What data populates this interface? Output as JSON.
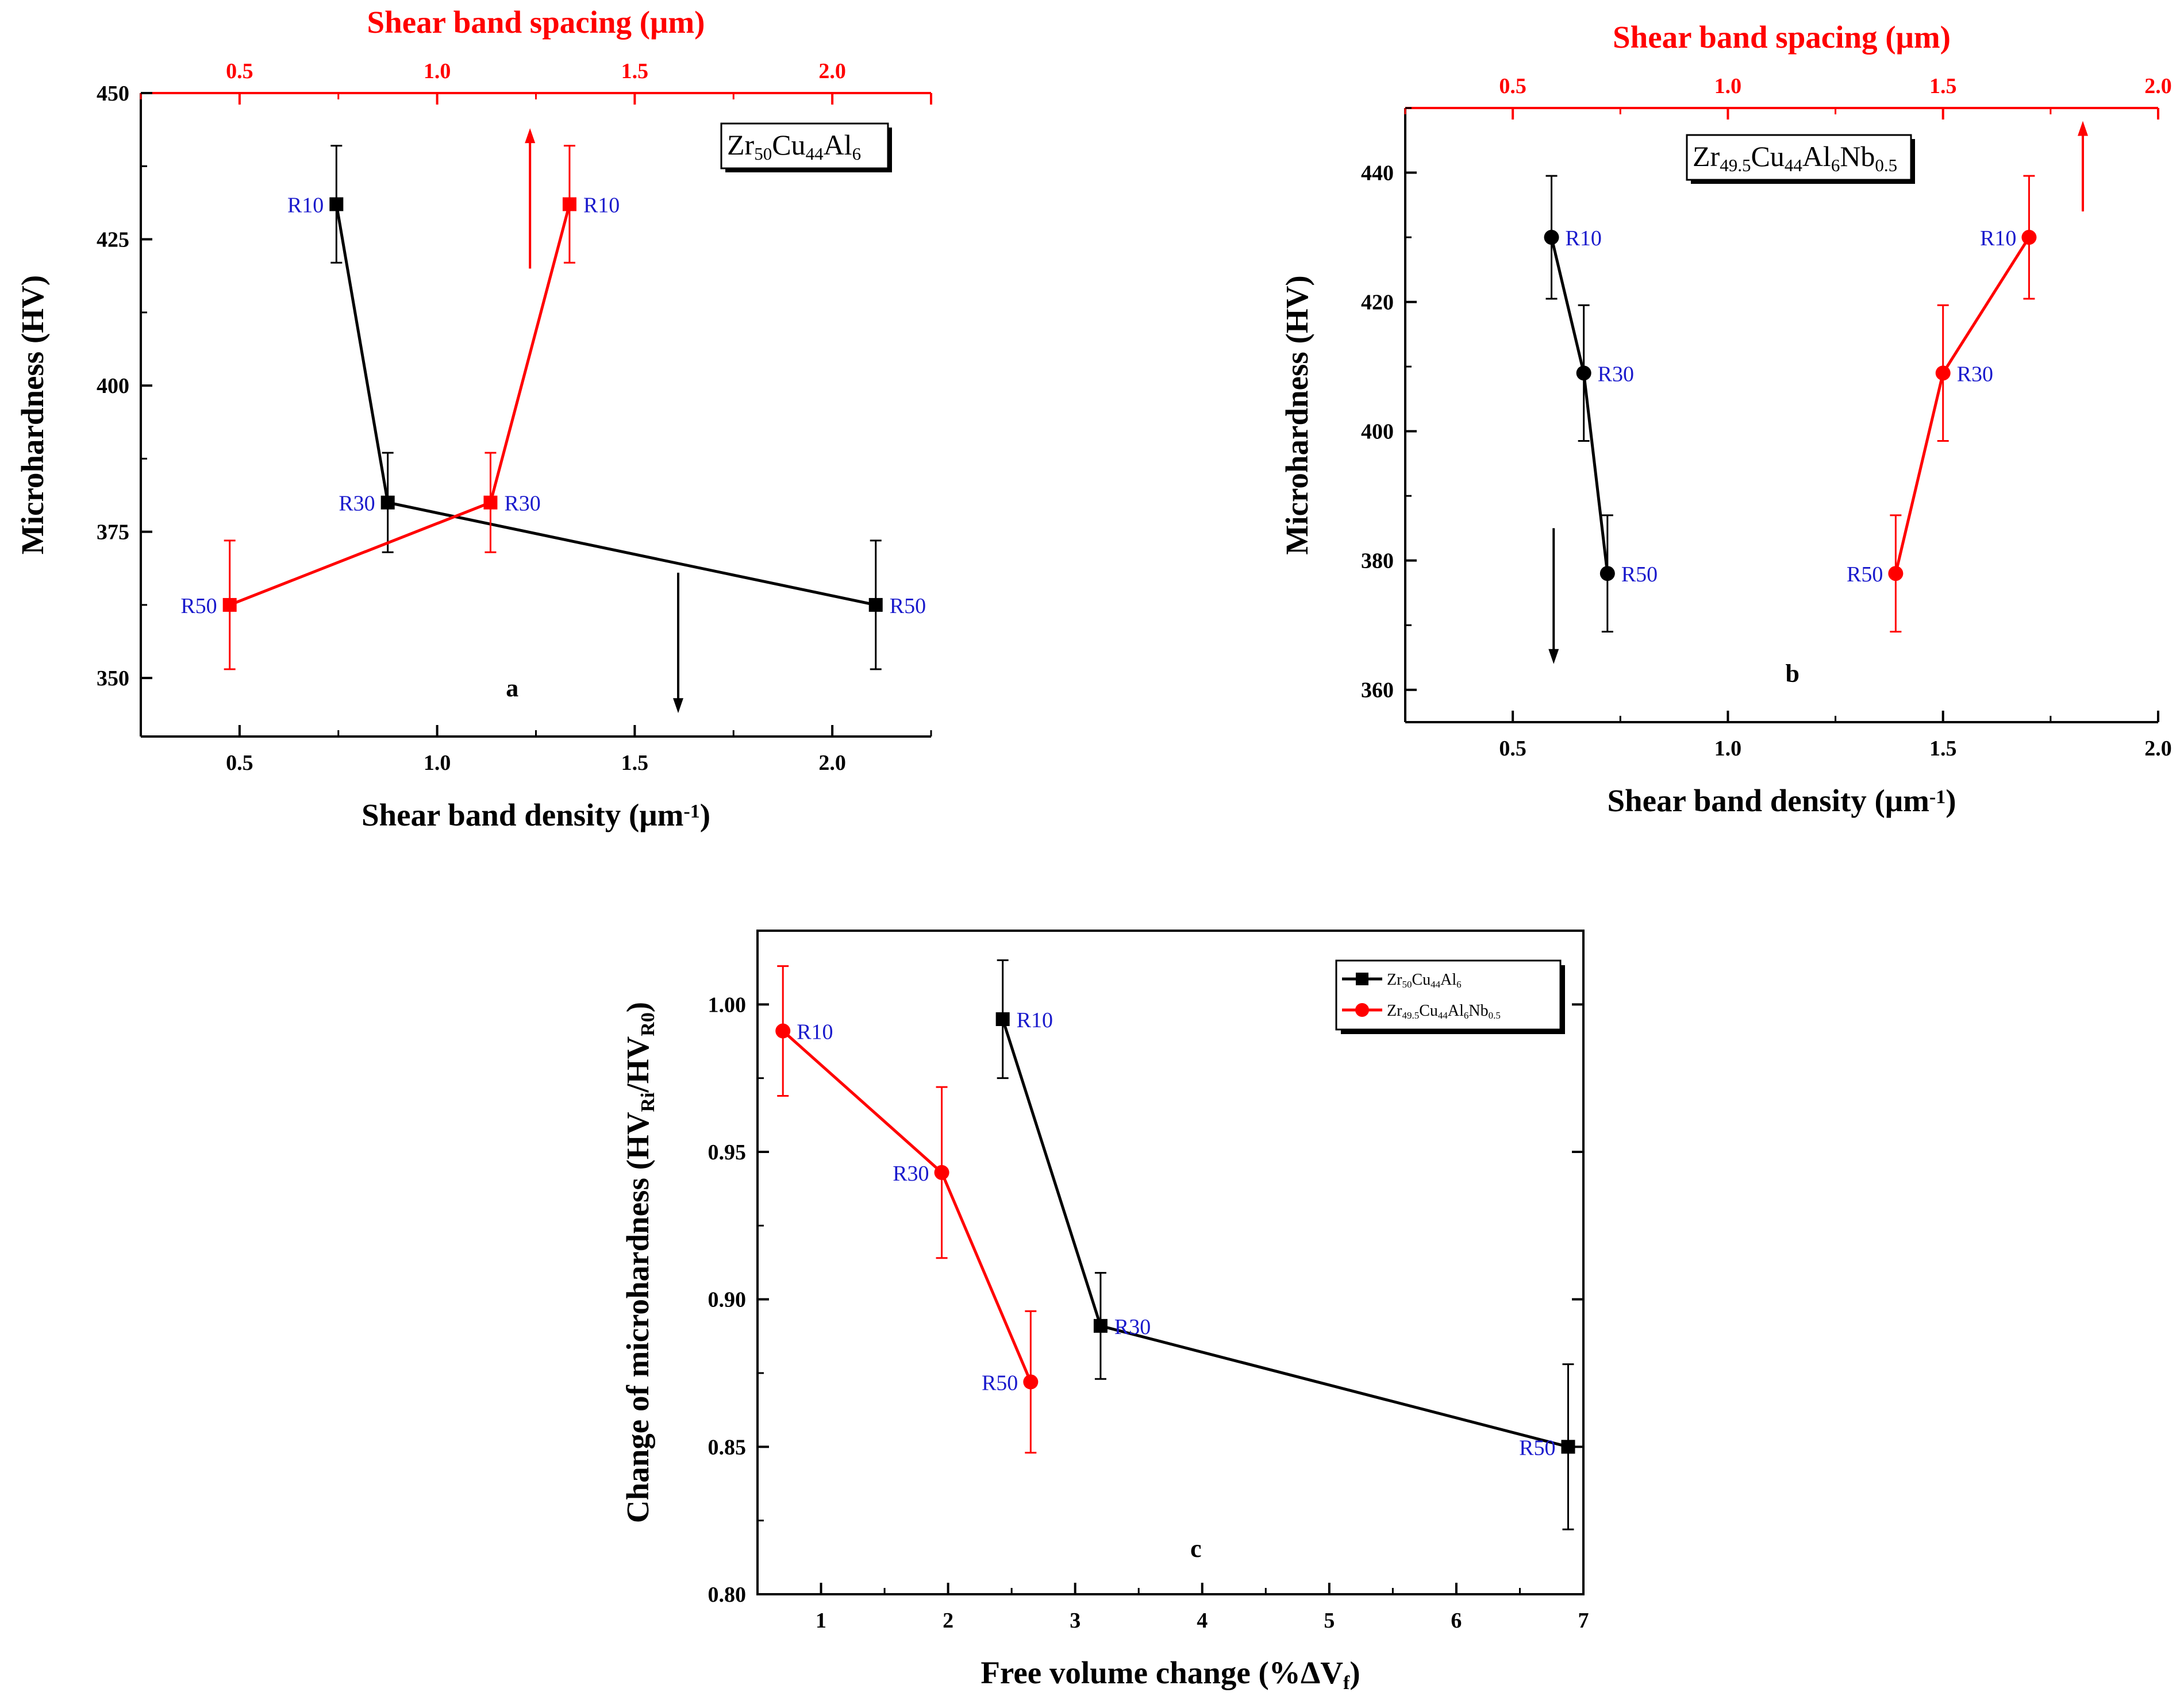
{
  "colors": {
    "black_series": "#000000",
    "red_series": "#ff0000",
    "point_label": "#1a1acc"
  },
  "chart_data": [
    {
      "id": "a",
      "type": "line",
      "panel_label": "a",
      "composition": {
        "base": "Zr",
        "s1": "50",
        "e2": "Cu",
        "s2": "44",
        "e3": "Al",
        "s3": "6"
      },
      "xlabel": {
        "text": "Shear band density (",
        "mu": "μ",
        "unit": "m",
        "exp": "-1",
        "close": ")"
      },
      "x2label": {
        "text": "Shear band spacing (",
        "mu": "μ",
        "unit": "m",
        "close": ")"
      },
      "ylabel": "Microhardness (HV)",
      "xlim": [
        0.25,
        2.25
      ],
      "x2lim": [
        0.25,
        2.25
      ],
      "ylim": [
        340,
        450
      ],
      "xticks": [
        0.5,
        1.0,
        1.5,
        2.0
      ],
      "xtick_labels": [
        "0.5",
        "1.0",
        "1.5",
        "2.0"
      ],
      "x2ticks": [
        0.5,
        1.0,
        1.5,
        2.0
      ],
      "x2tick_labels": [
        "0.5",
        "1.0",
        "1.5",
        "2.0"
      ],
      "yticks": [
        350,
        375,
        400,
        425,
        450
      ],
      "ytick_labels": [
        "350",
        "375",
        "400",
        "425",
        "450"
      ],
      "series": [
        {
          "name": "Shear band density",
          "color": "#000000",
          "marker": "square",
          "axis": "bottom",
          "x": [
            0.745,
            0.875,
            2.11
          ],
          "y": [
            431,
            380,
            362.5
          ],
          "err": [
            10,
            8.5,
            11
          ],
          "labels": [
            "R10",
            "R30",
            "R50"
          ],
          "label_pos": [
            "left",
            "left",
            "right"
          ]
        },
        {
          "name": "Shear band spacing",
          "color": "#ff0000",
          "marker": "square",
          "axis": "top",
          "x": [
            0.475,
            1.135,
            1.335
          ],
          "y": [
            362.5,
            380,
            431
          ],
          "err": [
            11,
            8.5,
            10
          ],
          "labels": [
            "R50",
            "R30",
            "R10"
          ],
          "label_pos": [
            "left",
            "right",
            "right"
          ]
        }
      ],
      "arrows": [
        {
          "color": "#ff0000",
          "x": 1.235,
          "y_from": 420,
          "y_to": 444
        },
        {
          "color": "#000000",
          "x": 1.61,
          "y_from": 368,
          "y_to": 344
        }
      ]
    },
    {
      "id": "b",
      "type": "line",
      "panel_label": "b",
      "composition": {
        "base": "Zr",
        "s1": "49.5",
        "e2": "Cu",
        "s2": "44",
        "e3": "Al",
        "s3": "6",
        "e4": "Nb",
        "s4": "0.5"
      },
      "xlabel": {
        "text": "Shear band density (",
        "mu": "μ",
        "unit": "m",
        "exp": "-1",
        "close": ")"
      },
      "x2label": {
        "text": "Shear band spacing (",
        "mu": "μ",
        "unit": "m",
        "close": ")"
      },
      "ylabel": "Microhardness (HV)",
      "xlim": [
        0.25,
        2.0
      ],
      "x2lim": [
        0.25,
        2.0
      ],
      "ylim": [
        355,
        450
      ],
      "xticks": [
        0.5,
        1.0,
        1.5,
        2.0
      ],
      "xtick_labels": [
        "0.5",
        "1.0",
        "1.5",
        "2.0"
      ],
      "x2ticks": [
        0.5,
        1.0,
        1.5,
        2.0
      ],
      "x2tick_labels": [
        "0.5",
        "1.0",
        "1.5",
        "2.0"
      ],
      "yticks": [
        360,
        380,
        400,
        420,
        440
      ],
      "ytick_labels": [
        "360",
        "380",
        "400",
        "420",
        "440"
      ],
      "series": [
        {
          "name": "Shear band density",
          "color": "#000000",
          "marker": "circle",
          "axis": "bottom",
          "x": [
            0.59,
            0.665,
            0.72
          ],
          "y": [
            430,
            409,
            378
          ],
          "err": [
            9.5,
            10.5,
            9
          ],
          "labels": [
            "R10",
            "R30",
            "R50"
          ],
          "label_pos": [
            "right",
            "right",
            "right"
          ]
        },
        {
          "name": "Shear band spacing",
          "color": "#ff0000",
          "marker": "circle",
          "axis": "top",
          "x": [
            1.39,
            1.5,
            1.7
          ],
          "y": [
            378,
            409,
            430
          ],
          "err": [
            9,
            10.5,
            9.5
          ],
          "labels": [
            "R50",
            "R30",
            "R10"
          ],
          "label_pos": [
            "left",
            "right",
            "left"
          ]
        }
      ],
      "arrows": [
        {
          "color": "#000000",
          "x": 0.595,
          "y_from": 385,
          "y_to": 364
        },
        {
          "color": "#ff0000",
          "x": 1.825,
          "y_from": 434,
          "y_to": 448
        }
      ]
    },
    {
      "id": "c",
      "type": "line",
      "panel_label": "c",
      "xlabel": {
        "text": "Free volume change (%",
        "delta": "ΔV",
        "sub": "f",
        "close": ")"
      },
      "ylabel": {
        "text": "Change of microhardness (HV",
        "sub1": "Ri",
        "slash": "/HV",
        "sub2": "R0",
        "close": ")"
      },
      "xlim": [
        0.5,
        7.0
      ],
      "ylim": [
        0.8,
        1.025
      ],
      "xticks": [
        1,
        2,
        3,
        4,
        5,
        6,
        7
      ],
      "xtick_labels": [
        "1",
        "2",
        "3",
        "4",
        "5",
        "6",
        "7"
      ],
      "yticks": [
        0.8,
        0.85,
        0.9,
        0.95,
        1.0
      ],
      "ytick_labels": [
        "0.80",
        "0.85",
        "0.90",
        "0.95",
        "1.00"
      ],
      "series": [
        {
          "name": "Zr50Cu44Al6",
          "color": "#000000",
          "marker": "square",
          "legend": {
            "base": "Zr",
            "s1": "50",
            "e2": "Cu",
            "s2": "44",
            "e3": "Al",
            "s3": "6"
          },
          "x": [
            2.43,
            3.2,
            6.88
          ],
          "y": [
            0.995,
            0.891,
            0.85
          ],
          "err": [
            0.02,
            0.018,
            0.028
          ],
          "labels": [
            "R10",
            "R30",
            "R50"
          ],
          "label_pos": [
            "right",
            "right",
            "left"
          ]
        },
        {
          "name": "Zr49.5Cu44Al6Nb0.5",
          "color": "#ff0000",
          "marker": "circle",
          "legend": {
            "base": "Zr",
            "s1": "49.5",
            "e2": "Cu",
            "s2": "44",
            "e3": "Al",
            "s3": "6",
            "e4": "Nb",
            "s4": "0.5"
          },
          "x": [
            0.7,
            1.95,
            2.65
          ],
          "y": [
            0.991,
            0.943,
            0.872
          ],
          "err": [
            0.022,
            0.029,
            0.024
          ],
          "labels": [
            "R10",
            "R30",
            "R50"
          ],
          "label_pos": [
            "right",
            "left",
            "left"
          ]
        }
      ]
    }
  ]
}
